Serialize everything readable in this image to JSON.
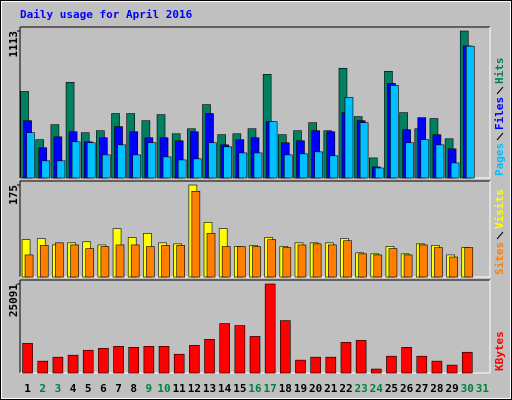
{
  "chart_data": [
    {
      "type": "bar",
      "title": "Daily usage for April 2016",
      "ylim": [
        0,
        1113
      ],
      "yticks": [
        1113
      ],
      "series": [
        {
          "name": "Hits",
          "color": "#008060",
          "values": [
            655,
            290,
            404,
            724,
            343,
            358,
            488,
            488,
            434,
            480,
            335,
            373,
            556,
            328,
            335,
            373,
            785,
            328,
            358,
            419,
            358,
            831,
            465,
            152,
            808,
            495,
            373,
            450,
            297,
            1113,
            0
          ]
        },
        {
          "name": "Files",
          "color": "#0000ff",
          "values": [
            434,
            229,
            312,
            350,
            274,
            305,
            389,
            350,
            305,
            305,
            282,
            350,
            488,
            251,
            290,
            305,
            427,
            267,
            282,
            358,
            350,
            495,
            434,
            84,
            716,
            366,
            457,
            328,
            221,
            1000,
            0
          ]
        },
        {
          "name": "Pages",
          "color": "#00c0ff",
          "values": [
            343,
            130,
            130,
            274,
            267,
            175,
            251,
            175,
            267,
            160,
            137,
            145,
            267,
            236,
            190,
            190,
            427,
            175,
            183,
            198,
            168,
            610,
            419,
            76,
            701,
            267,
            290,
            251,
            114,
            998,
            0
          ]
        }
      ]
    },
    {
      "type": "bar",
      "ylim": [
        0,
        175
      ],
      "yticks": [
        175
      ],
      "series": [
        {
          "name": "Visits",
          "color": "#ffff00",
          "values": [
            71,
            73,
            61,
            65,
            67,
            61,
            92,
            75,
            83,
            65,
            63,
            175,
            104,
            92,
            58,
            60,
            75,
            58,
            65,
            65,
            65,
            73,
            46,
            44,
            58,
            44,
            63,
            60,
            42,
            56,
            0
          ]
        },
        {
          "name": "Sites",
          "color": "#ff8000",
          "values": [
            42,
            60,
            65,
            61,
            54,
            58,
            61,
            61,
            58,
            60,
            60,
            163,
            83,
            58,
            58,
            58,
            71,
            56,
            61,
            63,
            61,
            69,
            44,
            42,
            54,
            42,
            61,
            56,
            38,
            56,
            0
          ]
        }
      ]
    },
    {
      "type": "bar",
      "ylim": [
        0,
        25091
      ],
      "yticks": [
        25091
      ],
      "categories": [
        "1",
        "2",
        "3",
        "4",
        "5",
        "6",
        "7",
        "8",
        "9",
        "10",
        "11",
        "12",
        "13",
        "14",
        "15",
        "16",
        "17",
        "18",
        "19",
        "20",
        "21",
        "22",
        "23",
        "24",
        "25",
        "26",
        "27",
        "28",
        "29",
        "30",
        "31"
      ],
      "category_colors": [
        "#000000",
        "#008040",
        "#008040",
        "#000000",
        "#000000",
        "#000000",
        "#000000",
        "#000000",
        "#008040",
        "#008040",
        "#000000",
        "#000000",
        "#000000",
        "#000000",
        "#000000",
        "#008040",
        "#008040",
        "#000000",
        "#000000",
        "#000000",
        "#000000",
        "#000000",
        "#008040",
        "#008040",
        "#000000",
        "#000000",
        "#000000",
        "#000000",
        "#000000",
        "#008040",
        "#008040"
      ],
      "series": [
        {
          "name": "KBytes",
          "color": "#ff0000",
          "values": [
            8364,
            3346,
            4461,
            5018,
            6418,
            6970,
            7527,
            7249,
            7527,
            7527,
            5297,
            7806,
            9480,
            13940,
            13382,
            10316,
            25091,
            14776,
            3624,
            4461,
            4461,
            8643,
            9200,
            1115,
            4740,
            7249,
            4740,
            3346,
            2230,
            5855,
            0
          ]
        }
      ]
    }
  ]
}
